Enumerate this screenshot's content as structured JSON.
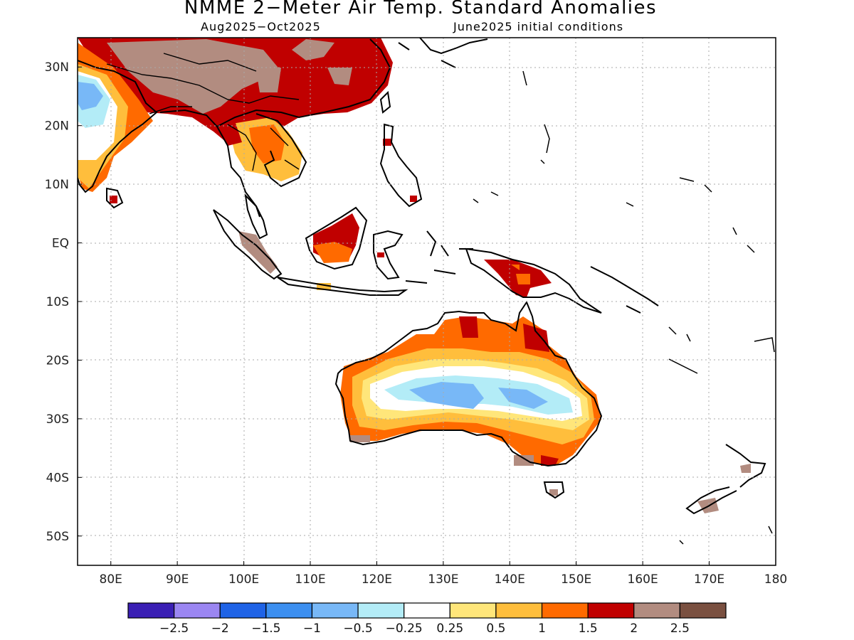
{
  "title": "NMME 2−Meter Air Temp. Standard Anomalies",
  "subtitle_left": "Aug2025−Oct2025",
  "subtitle_right": "June2025 initial conditions",
  "map": {
    "lon_range": [
      75,
      180
    ],
    "lat_range": [
      -55,
      35
    ],
    "lon_ticks": [
      {
        "v": 80,
        "label": "80E"
      },
      {
        "v": 90,
        "label": "90E"
      },
      {
        "v": 100,
        "label": "100E"
      },
      {
        "v": 110,
        "label": "110E"
      },
      {
        "v": 120,
        "label": "120E"
      },
      {
        "v": 130,
        "label": "130E"
      },
      {
        "v": 140,
        "label": "140E"
      },
      {
        "v": 150,
        "label": "150E"
      },
      {
        "v": 160,
        "label": "160E"
      },
      {
        "v": 170,
        "label": "170E"
      },
      {
        "v": 180,
        "label": "180"
      }
    ],
    "lat_ticks": [
      {
        "v": 30,
        "label": "30N"
      },
      {
        "v": 20,
        "label": "20N"
      },
      {
        "v": 10,
        "label": "10N"
      },
      {
        "v": 0,
        "label": "EQ"
      },
      {
        "v": -10,
        "label": "10S"
      },
      {
        "v": -20,
        "label": "20S"
      },
      {
        "v": -30,
        "label": "30S"
      },
      {
        "v": -40,
        "label": "40S"
      },
      {
        "v": -50,
        "label": "50S"
      }
    ],
    "grid": true
  },
  "colorbar": {
    "colors": [
      "#3a1fb4",
      "#9b86f2",
      "#1f63e6",
      "#3c8ff0",
      "#78b8f7",
      "#b3ecf7",
      "#ffffff",
      "#ffe67a",
      "#ffbe3c",
      "#ff6a00",
      "#c00000",
      "#b28c80",
      "#7a5040"
    ],
    "labels": [
      "−2.5",
      "−2",
      "−1.5",
      "−1",
      "−0.5",
      "−0.25",
      "0.25",
      "0.5",
      "1",
      "1.5",
      "2",
      "2.5"
    ]
  },
  "anomaly_regions": [
    {
      "region": "Southern China",
      "value": 2
    },
    {
      "region": "Tibetan Plateau",
      "value": 2.5
    },
    {
      "region": "Indochina",
      "value": 1
    },
    {
      "region": "Northern India",
      "value": 1.5
    },
    {
      "region": "Western India",
      "value": -1
    },
    {
      "region": "Borneo",
      "value": 2
    },
    {
      "region": "Sumatra",
      "value": 2.5
    },
    {
      "region": "New Guinea",
      "value": 2
    },
    {
      "region": "Northern Australia",
      "value": 1.5
    },
    {
      "region": "Central Australia",
      "value": -0.5
    },
    {
      "region": "Southeast Australia",
      "value": 1.5
    },
    {
      "region": "New Zealand",
      "value": 2.5
    }
  ]
}
